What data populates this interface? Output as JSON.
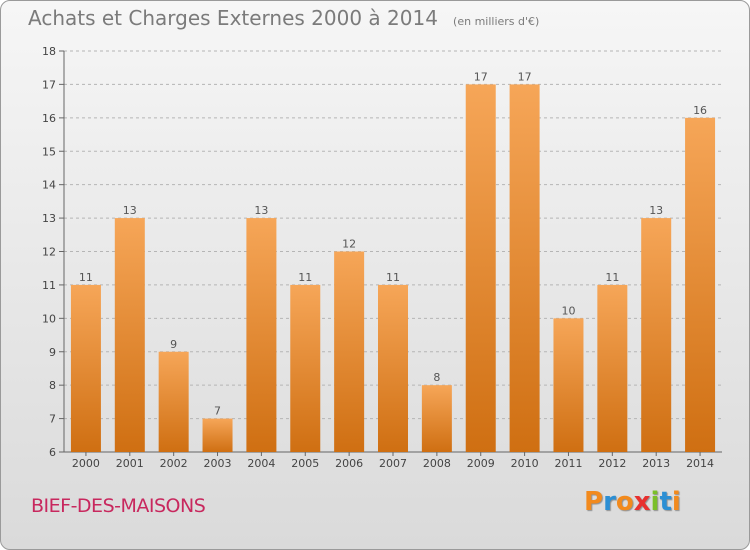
{
  "header": {
    "title": "Achats et Charges Externes 2000 à 2014",
    "unit": "(en milliers d'€)"
  },
  "footer": {
    "commune": "BIEF-DES-MAISONS",
    "logo_text": "Proxiti",
    "logo_colors": [
      "#f28a1d",
      "#2c8fd4",
      "#f28a1d",
      "#e8302f",
      "#7bbf2a",
      "#2c8fd4",
      "#f28a1d"
    ]
  },
  "colors": {
    "bar_top": "#f6a658",
    "bar_bottom": "#cf6f12",
    "grid": "#b5b5b5",
    "axis_text": "#444444",
    "label_text": "#555555"
  },
  "chart_data": {
    "type": "bar",
    "categories": [
      "2000",
      "2001",
      "2002",
      "2003",
      "2004",
      "2005",
      "2006",
      "2007",
      "2008",
      "2009",
      "2010",
      "2011",
      "2012",
      "2013",
      "2014"
    ],
    "values": [
      11,
      13,
      9,
      7,
      13,
      11,
      12,
      11,
      8,
      17,
      17,
      10,
      11,
      13,
      16
    ],
    "data_labels": [
      "11",
      "13",
      "9",
      "7",
      "13",
      "11",
      "12",
      "11",
      "8",
      "17",
      "17",
      "10",
      "11",
      "13",
      "16"
    ],
    "y_ticks": [
      "6",
      "7",
      "8",
      "9",
      "10",
      "11",
      "12",
      "13",
      "14",
      "15",
      "16",
      "17",
      "18"
    ],
    "ylim": [
      6,
      18
    ],
    "grid": true,
    "legend": "none"
  }
}
